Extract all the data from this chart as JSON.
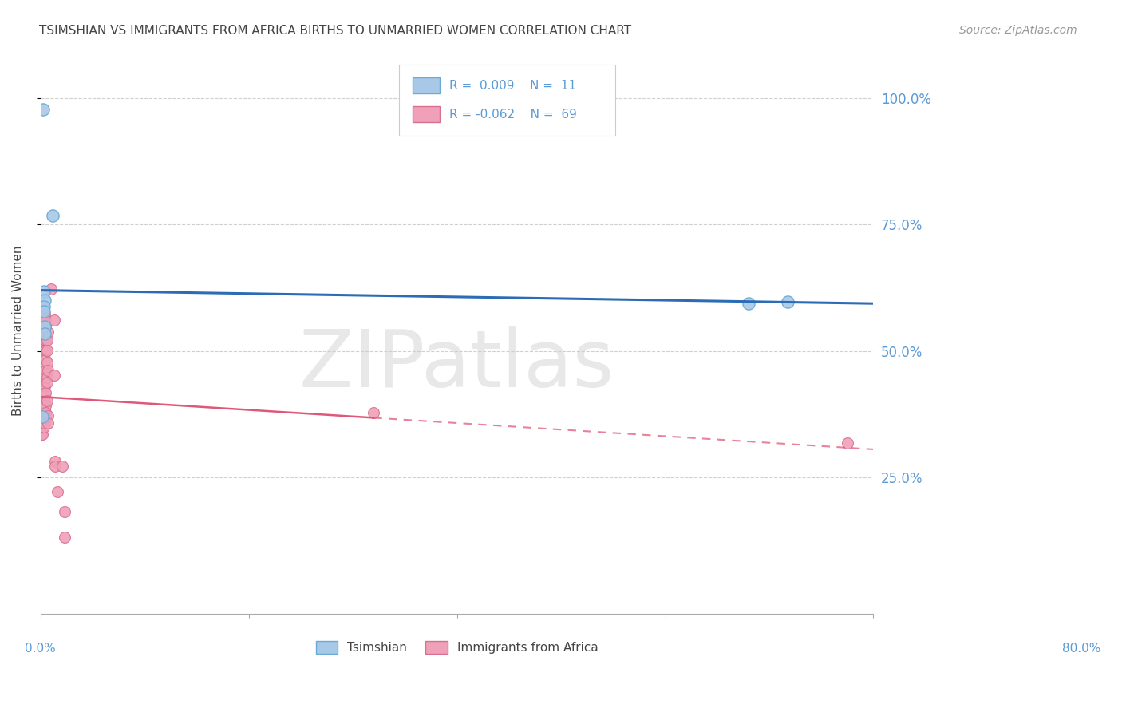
{
  "title": "TSIMSHIAN VS IMMIGRANTS FROM AFRICA BIRTHS TO UNMARRIED WOMEN CORRELATION CHART",
  "source": "Source: ZipAtlas.com",
  "ylabel": "Births to Unmarried Women",
  "watermark": "ZIPatlas",
  "xlim": [
    0.0,
    0.8
  ],
  "ylim": [
    -0.02,
    1.1
  ],
  "ytick_values": [
    0.25,
    0.5,
    0.75,
    1.0
  ],
  "ytick_labels": [
    "25.0%",
    "50.0%",
    "75.0%",
    "100.0%"
  ],
  "tsimshian_color": "#a8c8e8",
  "tsimshian_edge": "#6aaad4",
  "tsimshian_line_color": "#2b6cb5",
  "africa_color": "#f0a0b8",
  "africa_edge": "#d87090",
  "africa_line_color": "#e05878",
  "background_color": "#ffffff",
  "grid_color": "#d0d0d0",
  "axis_color": "#aaaaaa",
  "label_color": "#5b9bd5",
  "text_color": "#444444",
  "tsimshian_points": [
    [
      0.0022,
      0.978
    ],
    [
      0.012,
      0.768
    ],
    [
      0.003,
      0.618
    ],
    [
      0.004,
      0.6
    ],
    [
      0.003,
      0.588
    ],
    [
      0.003,
      0.578
    ],
    [
      0.004,
      0.548
    ],
    [
      0.004,
      0.535
    ],
    [
      0.002,
      0.37
    ],
    [
      0.718,
      0.598
    ],
    [
      0.68,
      0.595
    ]
  ],
  "africa_points": [
    [
      0.001,
      0.4
    ],
    [
      0.001,
      0.39
    ],
    [
      0.001,
      0.375
    ],
    [
      0.001,
      0.365
    ],
    [
      0.001,
      0.355
    ],
    [
      0.001,
      0.348
    ],
    [
      0.001,
      0.342
    ],
    [
      0.001,
      0.335
    ],
    [
      0.002,
      0.415
    ],
    [
      0.002,
      0.402
    ],
    [
      0.002,
      0.388
    ],
    [
      0.002,
      0.378
    ],
    [
      0.002,
      0.37
    ],
    [
      0.002,
      0.358
    ],
    [
      0.002,
      0.348
    ],
    [
      0.002,
      0.335
    ],
    [
      0.003,
      0.425
    ],
    [
      0.003,
      0.412
    ],
    [
      0.003,
      0.4
    ],
    [
      0.003,
      0.388
    ],
    [
      0.003,
      0.378
    ],
    [
      0.003,
      0.37
    ],
    [
      0.003,
      0.36
    ],
    [
      0.003,
      0.35
    ],
    [
      0.004,
      0.572
    ],
    [
      0.004,
      0.558
    ],
    [
      0.004,
      0.522
    ],
    [
      0.004,
      0.502
    ],
    [
      0.004,
      0.462
    ],
    [
      0.004,
      0.442
    ],
    [
      0.004,
      0.43
    ],
    [
      0.004,
      0.412
    ],
    [
      0.004,
      0.398
    ],
    [
      0.004,
      0.388
    ],
    [
      0.004,
      0.378
    ],
    [
      0.004,
      0.368
    ],
    [
      0.004,
      0.358
    ],
    [
      0.005,
      0.562
    ],
    [
      0.005,
      0.548
    ],
    [
      0.005,
      0.522
    ],
    [
      0.005,
      0.502
    ],
    [
      0.005,
      0.482
    ],
    [
      0.005,
      0.462
    ],
    [
      0.005,
      0.448
    ],
    [
      0.005,
      0.418
    ],
    [
      0.005,
      0.392
    ],
    [
      0.005,
      0.378
    ],
    [
      0.005,
      0.368
    ],
    [
      0.006,
      0.522
    ],
    [
      0.006,
      0.502
    ],
    [
      0.006,
      0.478
    ],
    [
      0.006,
      0.448
    ],
    [
      0.006,
      0.438
    ],
    [
      0.006,
      0.402
    ],
    [
      0.007,
      0.538
    ],
    [
      0.007,
      0.462
    ],
    [
      0.007,
      0.372
    ],
    [
      0.007,
      0.358
    ],
    [
      0.01,
      0.622
    ],
    [
      0.013,
      0.562
    ],
    [
      0.013,
      0.452
    ],
    [
      0.014,
      0.282
    ],
    [
      0.014,
      0.272
    ],
    [
      0.016,
      0.222
    ],
    [
      0.021,
      0.272
    ],
    [
      0.023,
      0.182
    ],
    [
      0.023,
      0.132
    ],
    [
      0.32,
      0.378
    ],
    [
      0.775,
      0.318
    ]
  ]
}
